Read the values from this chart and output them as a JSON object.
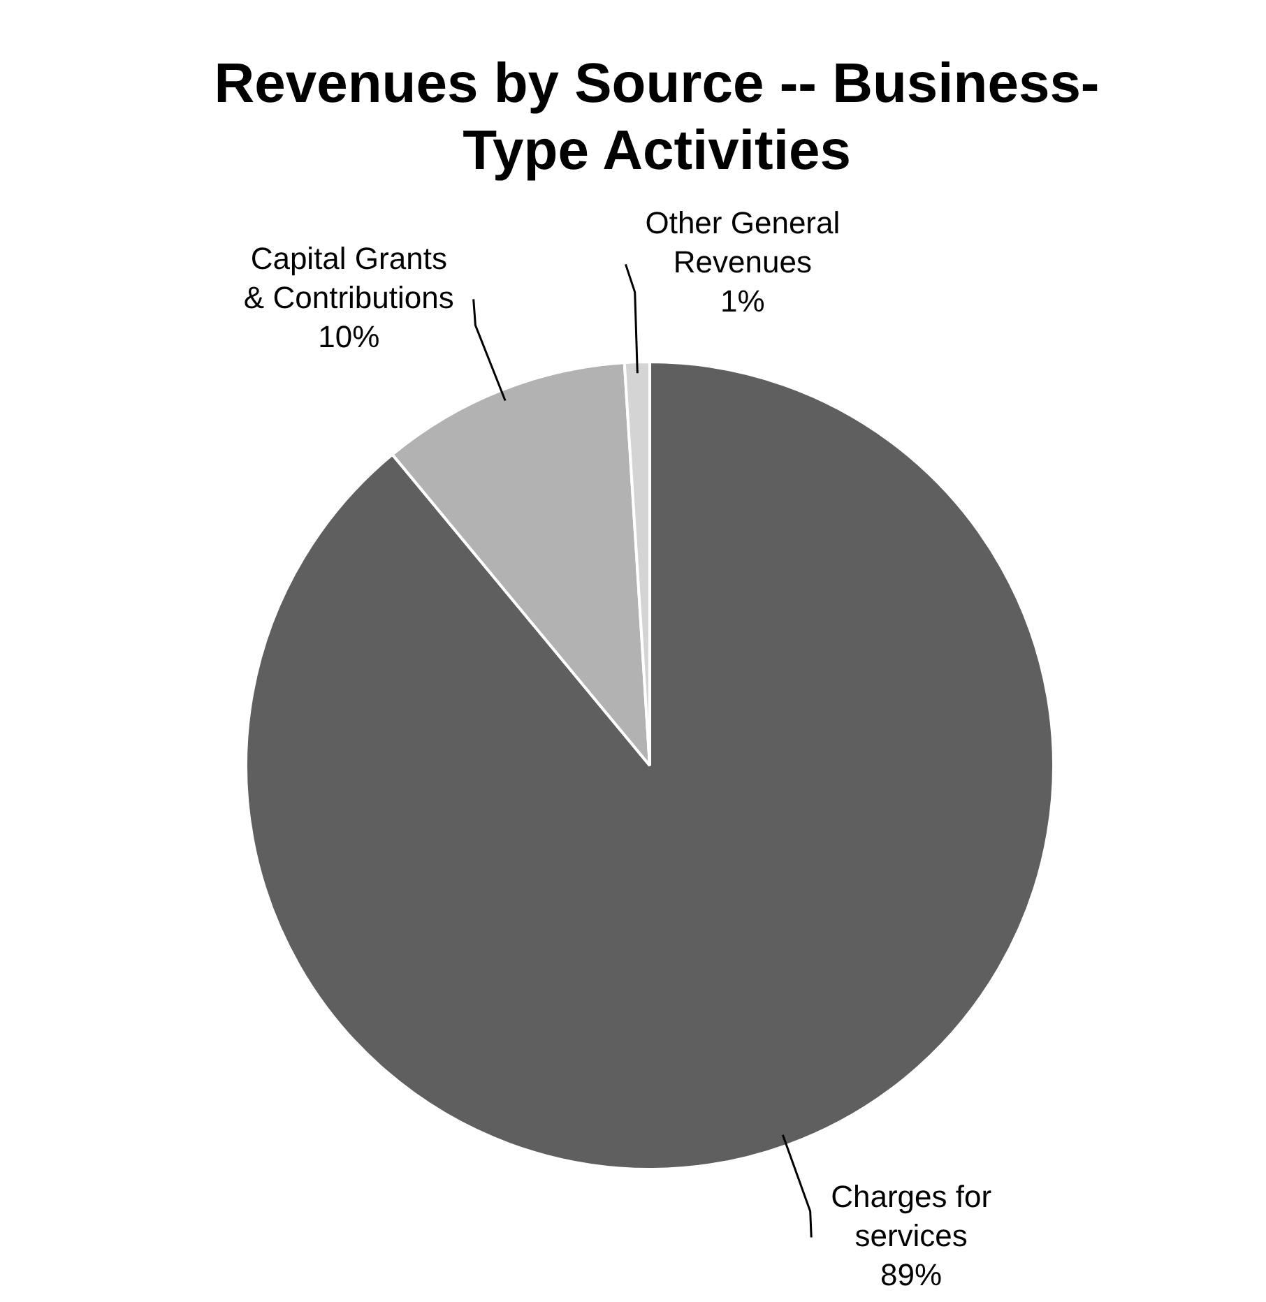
{
  "chart_data": {
    "type": "pie",
    "title": "Revenues by Source -- Business-Type Activities",
    "categories": [
      "Charges for services",
      "Capital Grants & Contributions",
      "Other General Revenues"
    ],
    "values": [
      89,
      10,
      1
    ],
    "colors": [
      "#5f5f5f",
      "#b2b2b2",
      "#d4d4d4"
    ],
    "value_labels": [
      "89%",
      "10%",
      "1%"
    ],
    "legend": false
  }
}
